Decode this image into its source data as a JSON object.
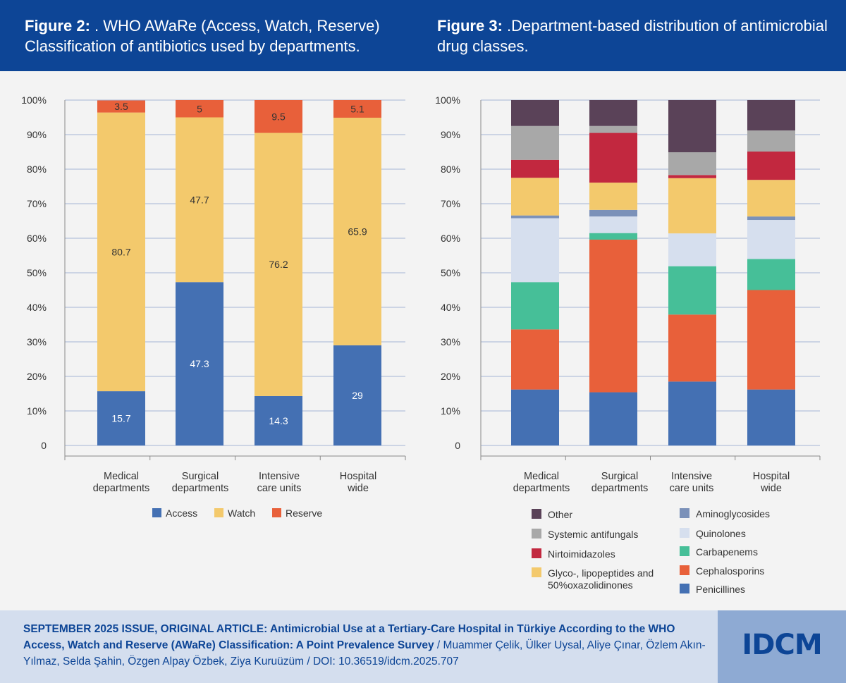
{
  "header": {
    "fig2_label": "Figure 2:",
    "fig2_title": " . WHO AWaRe (Access, Watch, Reserve) Classification of antibiotics used by departments.",
    "fig3_label": "Figure 3:",
    "fig3_title": " .Department-based distribution of antimicrobial drug classes."
  },
  "chart_data": [
    {
      "type": "bar",
      "stacked": true,
      "title": "WHO AWaRe (Access, Watch, Reserve) Classification of antibiotics used by departments.",
      "categories": [
        [
          "Medical",
          "departments"
        ],
        [
          "Surgical",
          "departments"
        ],
        [
          "Intensive",
          "care units"
        ],
        [
          "Hospital",
          "wide"
        ]
      ],
      "y_ticks": [
        "0",
        "10%",
        "20%",
        "30%",
        "40%",
        "50%",
        "60%",
        "70%",
        "80%",
        "90%",
        "100%"
      ],
      "ylim": [
        0,
        100
      ],
      "grid": true,
      "legend_position": "bottom",
      "series": [
        {
          "name": "Access",
          "color": "#4470b3",
          "values": [
            15.7,
            47.3,
            14.3,
            29
          ],
          "labels": [
            "15.7",
            "47.3",
            "14.3",
            "29"
          ]
        },
        {
          "name": "Watch",
          "color": "#f3c96c",
          "values": [
            80.7,
            47.7,
            76.2,
            65.9
          ],
          "labels": [
            "80.7",
            "47.7",
            "76.2",
            "65.9"
          ]
        },
        {
          "name": "Reserve",
          "color": "#e8603a",
          "values": [
            3.5,
            5,
            9.5,
            5.1
          ],
          "labels": [
            "3.5",
            "5",
            "9.5",
            "5.1"
          ]
        }
      ]
    },
    {
      "type": "bar",
      "stacked": true,
      "title": "Department-based distribution of antimicrobial drug classes.",
      "categories": [
        [
          "Medical",
          "departments"
        ],
        [
          "Surgical",
          "departments"
        ],
        [
          "Intensive",
          "care units"
        ],
        [
          "Hospital",
          "wide"
        ]
      ],
      "y_ticks": [
        "0",
        "10%",
        "20%",
        "30%",
        "40%",
        "50%",
        "60%",
        "70%",
        "80%",
        "90%",
        "100%"
      ],
      "ylim": [
        0,
        100
      ],
      "grid": true,
      "legend_position": "bottom",
      "series": [
        {
          "name": "Penicillines",
          "color": "#4470b3",
          "values": [
            16.2,
            15.4,
            18.5,
            16.2
          ]
        },
        {
          "name": "Cephalosporins",
          "color": "#e8603a",
          "values": [
            17.4,
            44.2,
            19.4,
            28.8
          ]
        },
        {
          "name": "Carbapenems",
          "color": "#46bf98",
          "values": [
            13.7,
            1.9,
            14.0,
            9.0
          ]
        },
        {
          "name": "Quinolones",
          "color": "#d6dfee",
          "values": [
            18.5,
            4.8,
            9.5,
            11.3
          ]
        },
        {
          "name": "Aminoglycosides",
          "color": "#7b91b9",
          "values": [
            0.8,
            1.9,
            0,
            1.0
          ]
        },
        {
          "name": "Glyco-, lipopeptides and 50%oxazolidinones",
          "color": "#f3c96c",
          "values": [
            10.9,
            7.9,
            16.0,
            10.6
          ]
        },
        {
          "name": "Nirtoimidazoles",
          "color": "#c2283f",
          "values": [
            5.2,
            14.4,
            0.9,
            8.2
          ]
        },
        {
          "name": "Systemic antifungals",
          "color": "#a8a8a8",
          "values": [
            9.8,
            2.0,
            6.6,
            6.1
          ]
        },
        {
          "name": "Other",
          "color": "#5a4258",
          "values": [
            7.5,
            7.5,
            15.1,
            8.8
          ]
        }
      ],
      "legend_left": [
        "Other",
        "Systemic antifungals",
        "Nirtoimidazoles",
        "Glyco-, lipopeptides and 50%oxazolidinones"
      ],
      "legend_right": [
        "Aminoglycosides",
        "Quinolones",
        "Carbapenems",
        "Cephalosporins",
        "Penicillines"
      ]
    }
  ],
  "footer": {
    "issue": "SEPTEMBER 2025 ISSUE, ORIGINAL ARTICLE:",
    "article_title": " Antimicrobial Use at a Tertiary-Care Hospital in Türkiye According to the WHO Access, Watch and Reserve (AWaRe) Classification: A Point Prevalence Survey",
    "authors": " / Muammer Çelik, Ülker Uysal, Aliye Çınar, Özlem Akın-Yılmaz, Selda Şahin, Özgen Alpay Özbek, Ziya Kuruüzüm / DOI: 10.36519/idcm.2025.707",
    "logo": "IDCM"
  }
}
